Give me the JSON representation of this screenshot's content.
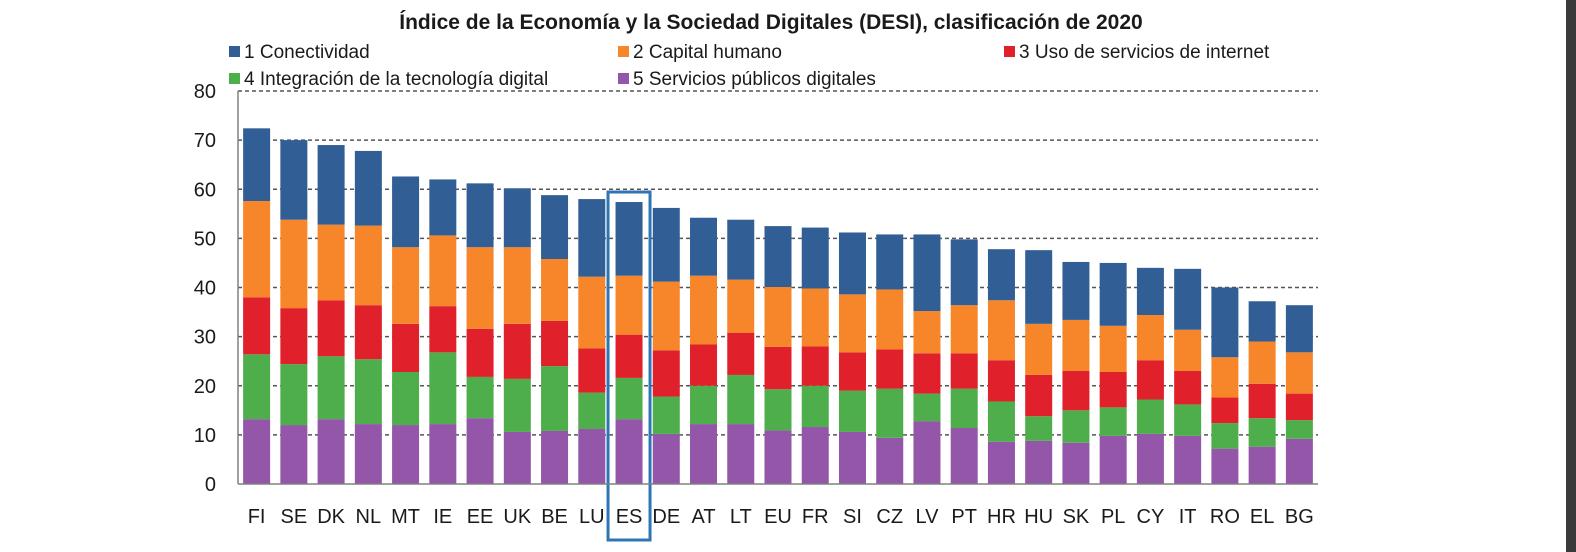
{
  "chart_data": {
    "type": "bar",
    "stacked": true,
    "title": "Índice de la Economía y la Sociedad Digitales (DESI), clasificación de 2020",
    "xlabel": "",
    "ylabel": "",
    "ylim": [
      0,
      80
    ],
    "yticks": [
      0,
      10,
      20,
      30,
      40,
      50,
      60,
      70,
      80
    ],
    "grid": "horizontal-dashed",
    "legend_position": "top",
    "highlight_category": "ES",
    "categories": [
      "FI",
      "SE",
      "DK",
      "NL",
      "MT",
      "IE",
      "EE",
      "UK",
      "BE",
      "LU",
      "ES",
      "DE",
      "AT",
      "LT",
      "EU",
      "FR",
      "SI",
      "CZ",
      "LV",
      "PT",
      "HR",
      "HU",
      "SK",
      "PL",
      "CY",
      "IT",
      "RO",
      "EL",
      "BG"
    ],
    "series": [
      {
        "name": "5 Servicios públicos digitales",
        "color": "#9356A8",
        "values": [
          13.2,
          12.0,
          13.2,
          12.2,
          12.0,
          12.2,
          13.4,
          10.6,
          10.8,
          11.2,
          13.2,
          10.2,
          12.2,
          12.2,
          10.9,
          11.6,
          10.6,
          9.4,
          12.8,
          11.4,
          8.6,
          8.8,
          8.4,
          9.8,
          10.2,
          9.8,
          7.2,
          7.6,
          9.2
        ]
      },
      {
        "name": "4 Integración de la tecnología digital",
        "color": "#4DAE4B",
        "values": [
          13.2,
          12.4,
          12.8,
          13.2,
          10.8,
          14.6,
          8.4,
          10.8,
          13.2,
          7.4,
          8.4,
          7.6,
          7.8,
          10.0,
          8.4,
          8.4,
          8.4,
          10.0,
          5.6,
          8.0,
          8.2,
          5.0,
          6.6,
          5.8,
          7.0,
          6.4,
          5.2,
          5.8,
          3.8
        ]
      },
      {
        "name": "3 Uso de servicios de internet",
        "color": "#E0202A",
        "values": [
          11.6,
          11.4,
          11.4,
          11.0,
          9.8,
          9.4,
          9.8,
          11.2,
          9.2,
          9.0,
          8.8,
          9.4,
          8.4,
          8.6,
          8.6,
          8.0,
          7.8,
          8.0,
          8.2,
          7.2,
          8.4,
          8.4,
          8.0,
          7.2,
          8.0,
          6.8,
          5.2,
          7.0,
          5.4
        ]
      },
      {
        "name": "2 Capital humano",
        "color": "#F7862A",
        "values": [
          19.6,
          18.0,
          15.4,
          16.2,
          15.6,
          14.4,
          16.6,
          15.6,
          12.6,
          14.6,
          12.0,
          14.0,
          14.0,
          10.8,
          12.2,
          11.8,
          11.8,
          12.2,
          8.6,
          9.8,
          12.2,
          10.4,
          10.4,
          9.4,
          9.2,
          8.4,
          8.2,
          8.6,
          8.4
        ]
      },
      {
        "name": "1 Conectividad",
        "color": "#315F95",
        "values": [
          14.8,
          16.2,
          16.2,
          15.2,
          14.4,
          11.4,
          13.0,
          12.0,
          13.0,
          15.8,
          15.0,
          15.0,
          11.8,
          12.2,
          12.4,
          12.4,
          12.6,
          11.2,
          15.6,
          13.4,
          10.4,
          15.0,
          11.8,
          12.8,
          9.6,
          12.4,
          14.2,
          8.2,
          9.6
        ]
      }
    ]
  }
}
